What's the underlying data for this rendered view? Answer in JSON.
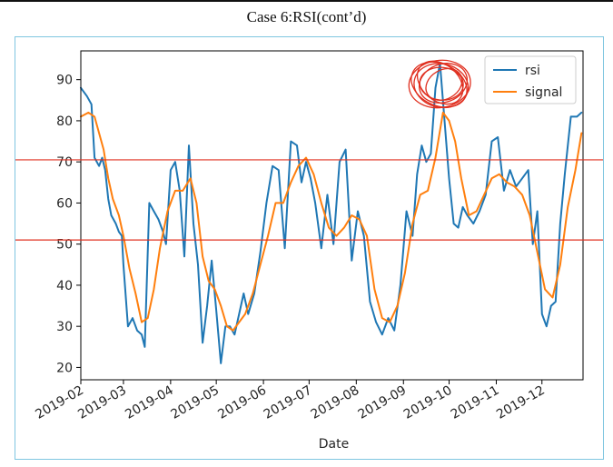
{
  "page": {
    "title": "Case 6:RSI(cont’d)"
  },
  "chart_data": {
    "type": "line",
    "title": "",
    "xlabel": "Date",
    "ylabel": "",
    "xlim": [
      "2019-02-01",
      "2019-12-28"
    ],
    "ylim": [
      17,
      97
    ],
    "x_ticks": [
      "2019-02",
      "2019-03",
      "2019-04",
      "2019-05",
      "2019-06",
      "2019-07",
      "2019-08",
      "2019-09",
      "2019-10",
      "2019-11",
      "2019-12"
    ],
    "y_ticks": [
      20,
      30,
      40,
      50,
      60,
      70,
      80,
      90
    ],
    "legend_position": "top-right",
    "grid": false,
    "series": [
      {
        "name": "rsi",
        "color": "#1f77b4",
        "x": [
          "2019-02-01",
          "2019-02-05",
          "2019-02-08",
          "2019-02-10",
          "2019-02-13",
          "2019-02-15",
          "2019-02-17",
          "2019-02-19",
          "2019-02-21",
          "2019-02-24",
          "2019-02-26",
          "2019-02-28",
          "2019-03-01",
          "2019-03-04",
          "2019-03-07",
          "2019-03-10",
          "2019-03-13",
          "2019-03-15",
          "2019-03-18",
          "2019-03-21",
          "2019-03-24",
          "2019-03-27",
          "2019-03-29",
          "2019-04-01",
          "2019-04-04",
          "2019-04-07",
          "2019-04-10",
          "2019-04-13",
          "2019-04-16",
          "2019-04-19",
          "2019-04-22",
          "2019-04-25",
          "2019-04-28",
          "2019-05-01",
          "2019-05-04",
          "2019-05-07",
          "2019-05-10",
          "2019-05-13",
          "2019-05-16",
          "2019-05-19",
          "2019-05-22",
          "2019-05-26",
          "2019-05-30",
          "2019-06-03",
          "2019-06-07",
          "2019-06-11",
          "2019-06-15",
          "2019-06-19",
          "2019-06-23",
          "2019-06-26",
          "2019-06-29",
          "2019-07-02",
          "2019-07-05",
          "2019-07-09",
          "2019-07-13",
          "2019-07-17",
          "2019-07-21",
          "2019-07-25",
          "2019-07-29",
          "2019-08-02",
          "2019-08-06",
          "2019-08-10",
          "2019-08-14",
          "2019-08-18",
          "2019-08-22",
          "2019-08-26",
          "2019-08-30",
          "2019-09-03",
          "2019-09-07",
          "2019-09-10",
          "2019-09-13",
          "2019-09-16",
          "2019-09-19",
          "2019-09-22",
          "2019-09-25",
          "2019-09-28",
          "2019-10-01",
          "2019-10-04",
          "2019-10-07",
          "2019-10-10",
          "2019-10-13",
          "2019-10-17",
          "2019-10-21",
          "2019-10-25",
          "2019-10-29",
          "2019-11-02",
          "2019-11-06",
          "2019-11-10",
          "2019-11-14",
          "2019-11-18",
          "2019-11-22",
          "2019-11-25",
          "2019-11-28",
          "2019-12-01",
          "2019-12-04",
          "2019-12-07",
          "2019-12-10",
          "2019-12-13",
          "2019-12-16",
          "2019-12-20",
          "2019-12-24",
          "2019-12-27"
        ],
        "values": [
          88,
          86,
          84,
          71,
          69,
          71,
          68,
          61,
          57,
          55,
          53,
          52,
          45,
          30,
          32,
          29,
          28,
          25,
          60,
          58,
          56,
          53,
          50,
          68,
          70,
          63,
          47,
          74,
          55,
          45,
          26,
          35,
          46,
          34,
          21,
          30,
          30,
          28,
          33,
          38,
          33,
          38,
          48,
          60,
          69,
          68,
          49,
          75,
          74,
          65,
          70,
          66,
          60,
          49,
          62,
          50,
          70,
          73,
          46,
          58,
          52,
          36,
          31,
          28,
          32,
          29,
          40,
          58,
          52,
          67,
          74,
          70,
          72,
          88,
          94,
          80,
          66,
          55,
          54,
          59,
          57,
          55,
          58,
          62,
          75,
          76,
          63,
          68,
          64,
          66,
          68,
          50,
          58,
          33,
          30,
          35,
          36,
          55,
          67,
          81,
          81,
          82
        ]
      },
      {
        "name": "signal",
        "color": "#ff7f0e",
        "x": [
          "2019-02-01",
          "2019-02-06",
          "2019-02-10",
          "2019-02-13",
          "2019-02-16",
          "2019-02-19",
          "2019-02-22",
          "2019-02-26",
          "2019-03-01",
          "2019-03-05",
          "2019-03-09",
          "2019-03-13",
          "2019-03-17",
          "2019-03-21",
          "2019-03-25",
          "2019-03-30",
          "2019-04-04",
          "2019-04-09",
          "2019-04-14",
          "2019-04-18",
          "2019-04-22",
          "2019-04-26",
          "2019-04-30",
          "2019-05-04",
          "2019-05-08",
          "2019-05-12",
          "2019-05-16",
          "2019-05-20",
          "2019-05-25",
          "2019-05-30",
          "2019-06-04",
          "2019-06-09",
          "2019-06-14",
          "2019-06-19",
          "2019-06-24",
          "2019-06-29",
          "2019-07-04",
          "2019-07-09",
          "2019-07-14",
          "2019-07-19",
          "2019-07-24",
          "2019-07-29",
          "2019-08-03",
          "2019-08-08",
          "2019-08-13",
          "2019-08-18",
          "2019-08-23",
          "2019-08-28",
          "2019-09-02",
          "2019-09-07",
          "2019-09-12",
          "2019-09-17",
          "2019-09-22",
          "2019-09-27",
          "2019-10-01",
          "2019-10-05",
          "2019-10-09",
          "2019-10-14",
          "2019-10-19",
          "2019-10-24",
          "2019-10-29",
          "2019-11-03",
          "2019-11-08",
          "2019-11-13",
          "2019-11-18",
          "2019-11-23",
          "2019-11-28",
          "2019-12-03",
          "2019-12-08",
          "2019-12-13",
          "2019-12-18",
          "2019-12-23",
          "2019-12-27"
        ],
        "values": [
          81,
          82,
          81,
          77,
          73,
          66,
          61,
          57,
          52,
          44,
          38,
          31,
          32,
          39,
          49,
          58,
          63,
          63,
          66,
          60,
          47,
          41,
          39,
          35,
          30,
          29,
          31,
          33,
          38,
          45,
          52,
          60,
          60,
          65,
          69,
          71,
          67,
          60,
          54,
          52,
          54,
          57,
          56,
          52,
          39,
          32,
          31,
          35,
          43,
          55,
          62,
          63,
          71,
          82,
          80,
          75,
          66,
          57,
          58,
          62,
          66,
          67,
          65,
          64,
          62,
          57,
          48,
          39,
          37,
          45,
          59,
          68,
          77
        ]
      }
    ],
    "annotations": [
      {
        "type": "hline",
        "y": 70.5,
        "color": "#e03020"
      },
      {
        "type": "hline",
        "y": 51,
        "color": "#e03020"
      },
      {
        "type": "scribble-circle",
        "x": "2019-09-26",
        "y": 89,
        "color": "#e03020"
      }
    ]
  }
}
